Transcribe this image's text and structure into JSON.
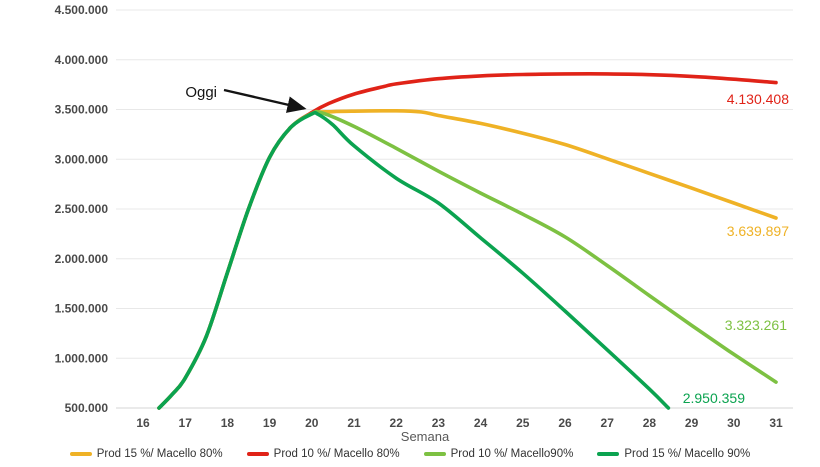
{
  "chart_data": {
    "type": "line",
    "title": "",
    "xlabel": "Semana",
    "ylabel": "",
    "x_ticks": [
      16,
      17,
      18,
      19,
      20,
      21,
      22,
      23,
      24,
      25,
      26,
      27,
      28,
      29,
      30,
      31
    ],
    "y_ticks": [
      {
        "value": 500000,
        "label": "500.000"
      },
      {
        "value": 1000000,
        "label": "1.000.000"
      },
      {
        "value": 1500000,
        "label": "1.500.000"
      },
      {
        "value": 2000000,
        "label": "2.000.000"
      },
      {
        "value": 2500000,
        "label": "2.500.000"
      },
      {
        "value": 3000000,
        "label": "3.000.000"
      },
      {
        "value": 3500000,
        "label": "3.500.000"
      },
      {
        "value": 4000000,
        "label": "4.000.000"
      },
      {
        "value": 4500000,
        "label": "4.500.000"
      }
    ],
    "ylim": [
      500000,
      4500000
    ],
    "xlim": [
      15.35,
      31.35
    ],
    "grid": "horizontal",
    "grid_color": "#e8e8e8",
    "axis_line_color": "#d6d6d6",
    "legend_position": "bottom",
    "annotation": {
      "text": "Oggi",
      "arrow_from_week": 17.95,
      "arrow_from_value": 3670000,
      "arrow_to_week": 19.82,
      "arrow_to_value": 3510000,
      "color": "#141414"
    },
    "series": [
      {
        "name": "Prod 15 %/ Macello 80%",
        "color": "#EFB226",
        "end_label": "3.639.897",
        "points": [
          [
            16.38,
            500000
          ],
          [
            16.7,
            640000
          ],
          [
            17,
            800000
          ],
          [
            17.5,
            1220000
          ],
          [
            18,
            1860000
          ],
          [
            18.5,
            2500000
          ],
          [
            19,
            3020000
          ],
          [
            19.5,
            3320000
          ],
          [
            20,
            3460000
          ],
          [
            20.5,
            3478000
          ],
          [
            21,
            3483000
          ],
          [
            22,
            3487000
          ],
          [
            22.6,
            3475000
          ],
          [
            23,
            3440000
          ],
          [
            24,
            3360000
          ],
          [
            25,
            3262000
          ],
          [
            26,
            3148000
          ],
          [
            27,
            3005000
          ],
          [
            28,
            2858000
          ],
          [
            29,
            2710000
          ],
          [
            30,
            2560000
          ],
          [
            31,
            2410000
          ]
        ]
      },
      {
        "name": "Prod 10 %/ Macello 80%",
        "color": "#E02318",
        "end_label": "4.130.408",
        "points": [
          [
            16.38,
            500000
          ],
          [
            16.7,
            640000
          ],
          [
            17,
            800000
          ],
          [
            17.5,
            1220000
          ],
          [
            18,
            1860000
          ],
          [
            18.5,
            2500000
          ],
          [
            19,
            3020000
          ],
          [
            19.5,
            3320000
          ],
          [
            20,
            3470000
          ],
          [
            20.4,
            3560000
          ],
          [
            21,
            3655000
          ],
          [
            21.7,
            3730000
          ],
          [
            22,
            3757000
          ],
          [
            23,
            3810000
          ],
          [
            24,
            3838000
          ],
          [
            25,
            3852000
          ],
          [
            26,
            3858000
          ],
          [
            27,
            3858000
          ],
          [
            28,
            3850000
          ],
          [
            29,
            3833000
          ],
          [
            30,
            3805000
          ],
          [
            31,
            3770000
          ]
        ]
      },
      {
        "name": "Prod 10 %/ Macello90%",
        "color": "#7DC142",
        "end_label": "3.323.261",
        "points": [
          [
            16.38,
            500000
          ],
          [
            16.7,
            640000
          ],
          [
            17,
            800000
          ],
          [
            17.5,
            1220000
          ],
          [
            18,
            1860000
          ],
          [
            18.5,
            2500000
          ],
          [
            19,
            3020000
          ],
          [
            19.5,
            3320000
          ],
          [
            20,
            3460000
          ],
          [
            20.25,
            3465000
          ],
          [
            21,
            3330000
          ],
          [
            22,
            3110000
          ],
          [
            23,
            2880000
          ],
          [
            24,
            2660000
          ],
          [
            25,
            2448000
          ],
          [
            26,
            2220000
          ],
          [
            27,
            1932000
          ],
          [
            28,
            1630000
          ],
          [
            29,
            1330000
          ],
          [
            30,
            1040000
          ],
          [
            31,
            760000
          ]
        ]
      },
      {
        "name": "Prod 15 %/ Macello 90%",
        "color": "#0BA350",
        "end_label": "2.950.359",
        "points": [
          [
            16.38,
            500000
          ],
          [
            16.7,
            640000
          ],
          [
            17,
            800000
          ],
          [
            17.5,
            1220000
          ],
          [
            18,
            1860000
          ],
          [
            18.5,
            2500000
          ],
          [
            19,
            3020000
          ],
          [
            19.5,
            3320000
          ],
          [
            20,
            3455000
          ],
          [
            20.15,
            3452000
          ],
          [
            20.5,
            3345000
          ],
          [
            21,
            3135000
          ],
          [
            22,
            2810000
          ],
          [
            23,
            2560000
          ],
          [
            24,
            2210000
          ],
          [
            25,
            1855000
          ],
          [
            26,
            1475000
          ],
          [
            27,
            1085000
          ],
          [
            28,
            690000
          ],
          [
            28.45,
            500000
          ]
        ]
      }
    ]
  }
}
